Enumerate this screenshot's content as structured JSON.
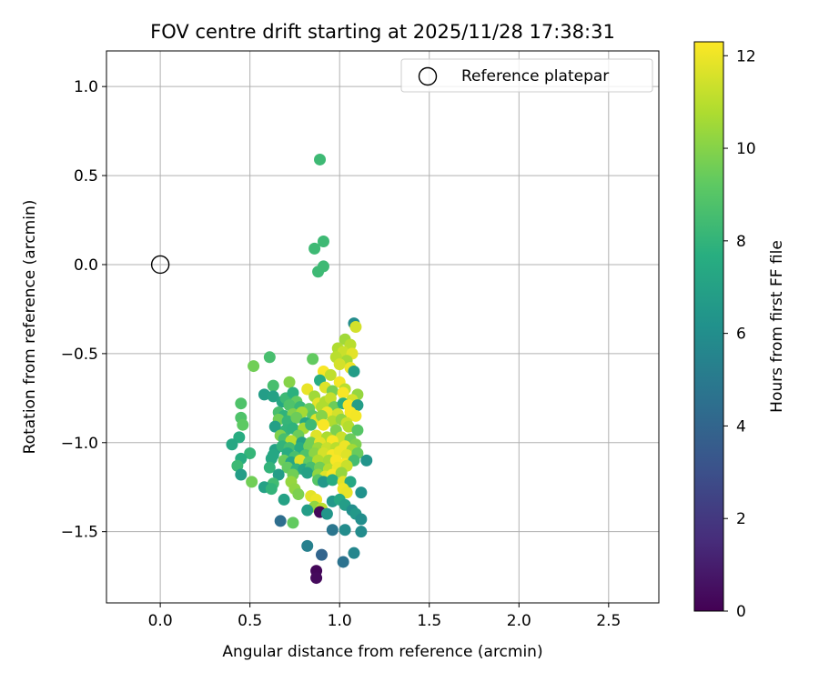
{
  "chart_data": {
    "type": "scatter",
    "title": "FOV centre drift starting at 2025/11/28 17:38:31",
    "xlabel": "Angular distance from reference (arcmin)",
    "ylabel": "Rotation from reference (arcmin)",
    "xlim": [
      -0.3,
      2.78
    ],
    "ylim": [
      -1.9,
      1.2
    ],
    "xticks": [
      0.0,
      0.5,
      1.0,
      1.5,
      2.0,
      2.5
    ],
    "xtick_labels": [
      "0.0",
      "0.5",
      "1.0",
      "1.5",
      "2.0",
      "2.5"
    ],
    "yticks": [
      1.0,
      0.5,
      0.0,
      -0.5,
      -1.0,
      -1.5
    ],
    "ytick_labels": [
      "1.0",
      "0.5",
      "0.0",
      "−0.5",
      "−1.0",
      "−1.5"
    ],
    "grid": true,
    "legend": {
      "position": "top-right",
      "entries": [
        {
          "label": "Reference platepar",
          "marker": "open-circle"
        }
      ]
    },
    "reference_point": {
      "x": 0.0,
      "y": 0.0
    },
    "colorbar": {
      "label": "Hours from first FF file",
      "range": [
        0,
        12.3
      ],
      "ticks": [
        0,
        2,
        4,
        6,
        8,
        10,
        12
      ],
      "tick_labels": [
        "0",
        "2",
        "4",
        "6",
        "8",
        "10",
        "12"
      ],
      "colormap": "viridis"
    },
    "points": [
      [
        0.89,
        0.59,
        8.3
      ],
      [
        0.86,
        0.09,
        8.3
      ],
      [
        0.91,
        0.13,
        8.3
      ],
      [
        0.88,
        -0.04,
        8.3
      ],
      [
        0.91,
        -0.01,
        8.3
      ],
      [
        1.08,
        -0.33,
        5.9
      ],
      [
        1.09,
        -0.35,
        11.5
      ],
      [
        1.03,
        -0.42,
        10.5
      ],
      [
        1.06,
        -0.45,
        11.0
      ],
      [
        0.99,
        -0.47,
        10.8
      ],
      [
        1.02,
        -0.49,
        11.3
      ],
      [
        1.07,
        -0.5,
        11.8
      ],
      [
        0.98,
        -0.52,
        11.0
      ],
      [
        1.04,
        -0.54,
        10.6
      ],
      [
        0.61,
        -0.52,
        8.6
      ],
      [
        0.85,
        -0.53,
        9.3
      ],
      [
        0.52,
        -0.57,
        9.6
      ],
      [
        1.0,
        -0.56,
        11.5
      ],
      [
        1.06,
        -0.58,
        12.0
      ],
      [
        1.08,
        -0.6,
        6.8
      ],
      [
        0.91,
        -0.6,
        12.2
      ],
      [
        0.95,
        -0.62,
        11.1
      ],
      [
        0.89,
        -0.65,
        7.6
      ],
      [
        1.0,
        -0.66,
        12.1
      ],
      [
        0.72,
        -0.66,
        10.0
      ],
      [
        0.63,
        -0.68,
        8.6
      ],
      [
        0.92,
        -0.69,
        11.7
      ],
      [
        0.96,
        -0.71,
        9.7
      ],
      [
        1.03,
        -0.7,
        11.0
      ],
      [
        1.1,
        -0.73,
        10.3
      ],
      [
        0.58,
        -0.73,
        6.8
      ],
      [
        0.63,
        -0.74,
        7.0
      ],
      [
        0.68,
        -0.77,
        7.3
      ],
      [
        0.7,
        -0.75,
        8.3
      ],
      [
        0.74,
        -0.72,
        7.8
      ],
      [
        0.76,
        -0.77,
        9.3
      ],
      [
        0.82,
        -0.7,
        11.9
      ],
      [
        0.86,
        -0.74,
        10.5
      ],
      [
        0.88,
        -0.78,
        11.8
      ],
      [
        0.92,
        -0.77,
        10.8
      ],
      [
        0.95,
        -0.75,
        11.2
      ],
      [
        1.02,
        -0.72,
        12.2
      ],
      [
        1.07,
        -0.76,
        11.5
      ],
      [
        0.45,
        -0.78,
        8.8
      ],
      [
        0.72,
        -0.79,
        8.8
      ],
      [
        0.78,
        -0.8,
        8.2
      ],
      [
        0.83,
        -0.81,
        9.3
      ],
      [
        0.9,
        -0.8,
        10.8
      ],
      [
        0.97,
        -0.8,
        9.5
      ],
      [
        1.02,
        -0.78,
        7.7
      ],
      [
        1.05,
        -0.79,
        12.2
      ],
      [
        1.1,
        -0.79,
        6.8
      ],
      [
        0.66,
        -0.83,
        8.6
      ],
      [
        0.69,
        -0.85,
        7.9
      ],
      [
        0.74,
        -0.84,
        9.9
      ],
      [
        0.79,
        -0.83,
        10.6
      ],
      [
        0.85,
        -0.85,
        9.0
      ],
      [
        0.93,
        -0.83,
        12.0
      ],
      [
        0.99,
        -0.84,
        11.5
      ],
      [
        1.06,
        -0.83,
        12.2
      ],
      [
        1.09,
        -0.85,
        12.1
      ],
      [
        0.45,
        -0.86,
        8.8
      ],
      [
        0.66,
        -0.87,
        9.6
      ],
      [
        0.71,
        -0.88,
        8.1
      ],
      [
        0.76,
        -0.86,
        9.5
      ],
      [
        0.81,
        -0.89,
        7.3
      ],
      [
        0.87,
        -0.87,
        11.7
      ],
      [
        0.9,
        -0.85,
        10.0
      ],
      [
        0.96,
        -0.88,
        10.8
      ],
      [
        1.01,
        -0.87,
        10.2
      ],
      [
        1.04,
        -0.89,
        11.3
      ],
      [
        0.46,
        -0.9,
        9.2
      ],
      [
        0.64,
        -0.91,
        6.9
      ],
      [
        0.7,
        -0.93,
        8.0
      ],
      [
        0.74,
        -0.92,
        7.9
      ],
      [
        0.8,
        -0.92,
        10.6
      ],
      [
        0.84,
        -0.9,
        8.3
      ],
      [
        0.91,
        -0.9,
        12.2
      ],
      [
        0.98,
        -0.93,
        9.8
      ],
      [
        1.05,
        -0.91,
        10.9
      ],
      [
        1.1,
        -0.93,
        9.0
      ],
      [
        0.67,
        -0.96,
        9.9
      ],
      [
        0.77,
        -0.96,
        9.5
      ],
      [
        0.87,
        -0.96,
        11.7
      ],
      [
        0.93,
        -0.97,
        10.7
      ],
      [
        1.01,
        -0.97,
        11.3
      ],
      [
        0.44,
        -0.97,
        7.6
      ],
      [
        0.69,
        -0.98,
        8.6
      ],
      [
        0.73,
        -0.99,
        11.0
      ],
      [
        0.79,
        -1.0,
        7.0
      ],
      [
        0.84,
        -1.0,
        9.6
      ],
      [
        0.89,
        -1.0,
        11.8
      ],
      [
        0.96,
        -0.99,
        12.2
      ],
      [
        1.06,
        -0.98,
        9.5
      ],
      [
        1.09,
        -1.01,
        9.8
      ],
      [
        0.4,
        -1.01,
        7.3
      ],
      [
        0.64,
        -1.04,
        7.0
      ],
      [
        0.68,
        -1.02,
        8.0
      ],
      [
        0.72,
        -1.03,
        8.5
      ],
      [
        0.78,
        -1.03,
        7.6
      ],
      [
        0.83,
        -1.02,
        9.6
      ],
      [
        0.88,
        -1.03,
        10.4
      ],
      [
        0.93,
        -1.03,
        11.3
      ],
      [
        0.98,
        -1.03,
        11.0
      ],
      [
        1.03,
        -1.02,
        12.0
      ],
      [
        1.07,
        -1.04,
        10.6
      ],
      [
        0.5,
        -1.06,
        8.1
      ],
      [
        0.63,
        -1.07,
        7.3
      ],
      [
        0.71,
        -1.06,
        7.6
      ],
      [
        0.75,
        -1.08,
        8.6
      ],
      [
        0.81,
        -1.07,
        8.8
      ],
      [
        0.86,
        -1.06,
        10.1
      ],
      [
        0.91,
        -1.06,
        11.5
      ],
      [
        0.96,
        -1.07,
        12.2
      ],
      [
        1.0,
        -1.05,
        12.0
      ],
      [
        1.04,
        -1.07,
        11.7
      ],
      [
        1.1,
        -1.06,
        9.4
      ],
      [
        0.45,
        -1.09,
        7.6
      ],
      [
        0.62,
        -1.09,
        7.3
      ],
      [
        0.69,
        -1.1,
        9.5
      ],
      [
        0.73,
        -1.11,
        7.2
      ],
      [
        0.78,
        -1.1,
        11.7
      ],
      [
        0.83,
        -1.11,
        9.2
      ],
      [
        0.88,
        -1.1,
        10.8
      ],
      [
        0.94,
        -1.1,
        10.6
      ],
      [
        0.98,
        -1.1,
        12.2
      ],
      [
        1.03,
        -1.12,
        12.2
      ],
      [
        1.08,
        -1.1,
        8.5
      ],
      [
        1.15,
        -1.1,
        6.3
      ],
      [
        0.43,
        -1.13,
        8.3
      ],
      [
        0.61,
        -1.14,
        8.0
      ],
      [
        0.71,
        -1.14,
        9.3
      ],
      [
        0.76,
        -1.15,
        8.0
      ],
      [
        0.8,
        -1.15,
        7.2
      ],
      [
        0.84,
        -1.14,
        8.6
      ],
      [
        0.89,
        -1.14,
        9.6
      ],
      [
        0.94,
        -1.15,
        10.9
      ],
      [
        0.99,
        -1.14,
        12.0
      ],
      [
        1.04,
        -1.13,
        11.3
      ],
      [
        0.45,
        -1.18,
        6.8
      ],
      [
        0.66,
        -1.18,
        6.8
      ],
      [
        0.74,
        -1.18,
        9.6
      ],
      [
        0.82,
        -1.17,
        7.0
      ],
      [
        0.88,
        -1.18,
        10.2
      ],
      [
        0.92,
        -1.19,
        11.7
      ],
      [
        0.96,
        -1.18,
        12.2
      ],
      [
        1.01,
        -1.17,
        10.3
      ],
      [
        0.51,
        -1.22,
        9.6
      ],
      [
        0.63,
        -1.23,
        8.4
      ],
      [
        0.73,
        -1.22,
        10.3
      ],
      [
        0.88,
        -1.21,
        9.0
      ],
      [
        0.91,
        -1.22,
        6.5
      ],
      [
        0.96,
        -1.21,
        7.6
      ],
      [
        1.02,
        -1.22,
        11.8
      ],
      [
        1.06,
        -1.22,
        7.3
      ],
      [
        0.58,
        -1.25,
        7.0
      ],
      [
        0.62,
        -1.26,
        8.0
      ],
      [
        0.75,
        -1.26,
        10.2
      ],
      [
        1.02,
        -1.26,
        12.0
      ],
      [
        1.04,
        -1.28,
        11.9
      ],
      [
        0.77,
        -1.29,
        9.8
      ],
      [
        0.84,
        -1.3,
        11.8
      ],
      [
        0.87,
        -1.32,
        12.0
      ],
      [
        0.69,
        -1.32,
        7.0
      ],
      [
        1.12,
        -1.28,
        6.2
      ],
      [
        0.96,
        -1.33,
        6.5
      ],
      [
        1.0,
        -1.32,
        7.3
      ],
      [
        0.86,
        -1.36,
        10.2
      ],
      [
        0.9,
        -1.37,
        11.0
      ],
      [
        0.89,
        -1.39,
        0.2
      ],
      [
        0.82,
        -1.38,
        6.8
      ],
      [
        0.93,
        -1.4,
        6.4
      ],
      [
        1.03,
        -1.35,
        6.8
      ],
      [
        1.07,
        -1.38,
        6.0
      ],
      [
        1.09,
        -1.4,
        6.5
      ],
      [
        1.12,
        -1.43,
        6.0
      ],
      [
        0.74,
        -1.45,
        9.3
      ],
      [
        0.67,
        -1.44,
        4.4
      ],
      [
        0.96,
        -1.49,
        4.8
      ],
      [
        1.03,
        -1.49,
        5.9
      ],
      [
        1.12,
        -1.5,
        5.9
      ],
      [
        0.82,
        -1.58,
        5.3
      ],
      [
        0.9,
        -1.63,
        4.0
      ],
      [
        1.08,
        -1.62,
        5.6
      ],
      [
        1.02,
        -1.67,
        4.6
      ],
      [
        0.87,
        -1.72,
        0.2
      ],
      [
        0.87,
        -1.76,
        0.3
      ]
    ]
  }
}
